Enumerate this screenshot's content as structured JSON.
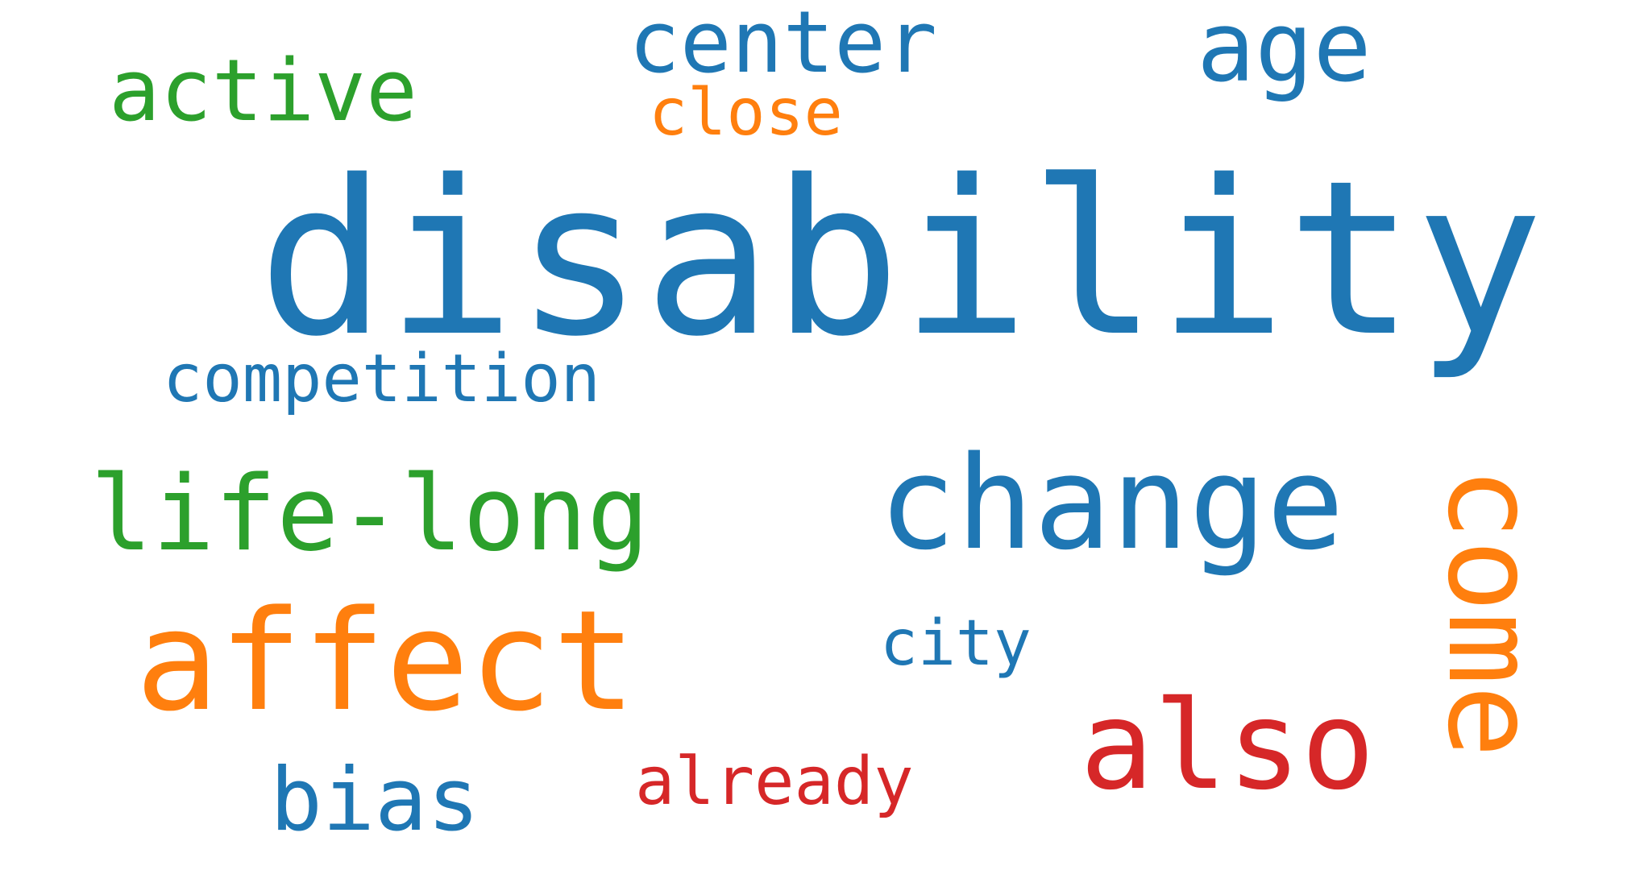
{
  "colors": {
    "blue": "#1f77b4",
    "green": "#2ca02c",
    "orange": "#ff7f0e",
    "red": "#d62728"
  },
  "words": {
    "disability": "disability",
    "change": "change",
    "affect": "affect",
    "come": "come",
    "also": "also",
    "life_long": "life-long",
    "age": "age",
    "center": "center",
    "active": "active",
    "bias": "bias",
    "competition": "competition",
    "close": "close",
    "already": "already",
    "city": "city"
  }
}
